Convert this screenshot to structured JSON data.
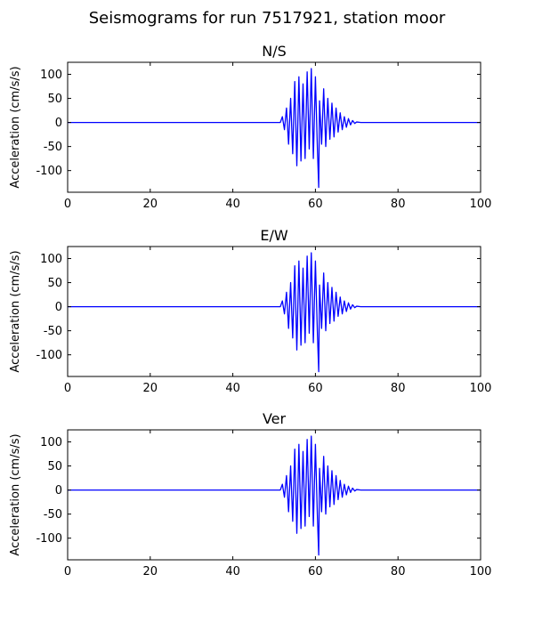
{
  "figure": {
    "suptitle": "Seismograms for run 7517921, station moor"
  },
  "chart_data": [
    {
      "type": "line",
      "title": "N/S",
      "xlabel": "",
      "ylabel": "Acceleration (cm/s/s)",
      "xlim": [
        0,
        100
      ],
      "ylim": [
        -145,
        125
      ],
      "xticks": [
        "0",
        "20",
        "40",
        "60",
        "80",
        "100"
      ],
      "yticks": [
        "100",
        "50",
        "0",
        "-50",
        "-100"
      ],
      "grid": false,
      "series": [
        {
          "color": "#0000ff",
          "x": [
            0,
            51.5,
            52,
            52.5,
            53,
            53.5,
            54,
            54.5,
            55,
            55.5,
            56,
            56.5,
            57,
            57.5,
            58,
            58.5,
            59,
            59.5,
            60,
            60.5,
            60.8,
            61,
            61.5,
            62,
            62.5,
            63,
            63.5,
            64,
            64.5,
            65,
            65.5,
            66,
            66.5,
            67,
            67.5,
            68,
            68.5,
            69,
            69.5,
            70,
            71,
            100
          ],
          "y": [
            0,
            0,
            12,
            -15,
            30,
            -45,
            50,
            -65,
            85,
            -90,
            95,
            -80,
            80,
            -75,
            105,
            -55,
            112,
            -75,
            95,
            -60,
            -135,
            45,
            -45,
            70,
            -50,
            50,
            -35,
            40,
            -30,
            30,
            -20,
            20,
            -15,
            12,
            -10,
            8,
            -5,
            4,
            -2,
            1,
            0,
            0
          ]
        }
      ]
    },
    {
      "type": "line",
      "title": "E/W",
      "xlabel": "",
      "ylabel": "Acceleration (cm/s/s)",
      "xlim": [
        0,
        100
      ],
      "ylim": [
        -145,
        125
      ],
      "xticks": [
        "0",
        "20",
        "40",
        "60",
        "80",
        "100"
      ],
      "yticks": [
        "100",
        "50",
        "0",
        "-50",
        "-100"
      ],
      "grid": false,
      "series": [
        {
          "color": "#0000ff",
          "x": [
            0,
            51.5,
            52,
            52.5,
            53,
            53.5,
            54,
            54.5,
            55,
            55.5,
            56,
            56.5,
            57,
            57.5,
            58,
            58.5,
            59,
            59.5,
            60,
            60.5,
            60.8,
            61,
            61.5,
            62,
            62.5,
            63,
            63.5,
            64,
            64.5,
            65,
            65.5,
            66,
            66.5,
            67,
            67.5,
            68,
            68.5,
            69,
            69.5,
            70,
            71,
            100
          ],
          "y": [
            0,
            0,
            12,
            -15,
            30,
            -45,
            50,
            -65,
            85,
            -90,
            95,
            -80,
            80,
            -75,
            105,
            -55,
            112,
            -75,
            95,
            -60,
            -135,
            45,
            -45,
            70,
            -50,
            50,
            -35,
            40,
            -30,
            30,
            -20,
            20,
            -15,
            12,
            -10,
            8,
            -5,
            4,
            -2,
            1,
            0,
            0
          ]
        }
      ]
    },
    {
      "type": "line",
      "title": "Ver",
      "xlabel": "",
      "ylabel": "Acceleration (cm/s/s)",
      "xlim": [
        0,
        100
      ],
      "ylim": [
        -145,
        125
      ],
      "xticks": [
        "0",
        "20",
        "40",
        "60",
        "80",
        "100"
      ],
      "yticks": [
        "100",
        "50",
        "0",
        "-50",
        "-100"
      ],
      "grid": false,
      "series": [
        {
          "color": "#0000ff",
          "x": [
            0,
            51.5,
            52,
            52.5,
            53,
            53.5,
            54,
            54.5,
            55,
            55.5,
            56,
            56.5,
            57,
            57.5,
            58,
            58.5,
            59,
            59.5,
            60,
            60.5,
            60.8,
            61,
            61.5,
            62,
            62.5,
            63,
            63.5,
            64,
            64.5,
            65,
            65.5,
            66,
            66.5,
            67,
            67.5,
            68,
            68.5,
            69,
            69.5,
            70,
            71,
            100
          ],
          "y": [
            0,
            0,
            12,
            -15,
            30,
            -45,
            50,
            -65,
            85,
            -90,
            95,
            -80,
            80,
            -75,
            105,
            -55,
            112,
            -75,
            95,
            -60,
            -135,
            45,
            -45,
            70,
            -50,
            50,
            -35,
            40,
            -30,
            30,
            -20,
            20,
            -15,
            12,
            -10,
            8,
            -5,
            4,
            -2,
            1,
            0,
            0
          ]
        }
      ]
    }
  ]
}
